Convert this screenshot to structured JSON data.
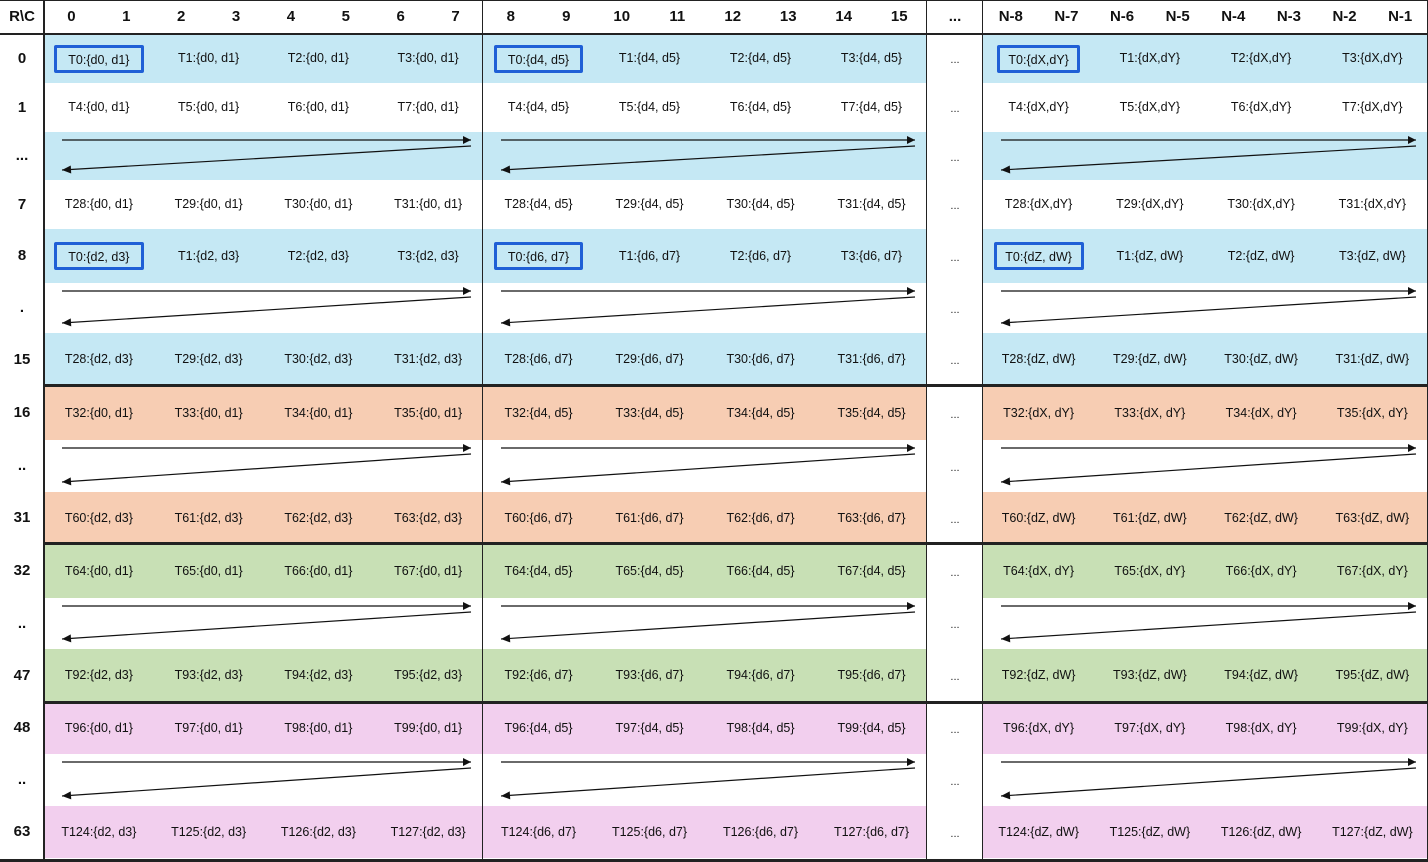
{
  "corner_label": "R\\C",
  "column_headers": {
    "block0": [
      "0",
      "1",
      "2",
      "3",
      "4",
      "5",
      "6",
      "7"
    ],
    "block1": [
      "8",
      "9",
      "10",
      "11",
      "12",
      "13",
      "14",
      "15"
    ],
    "ellipsis": "...",
    "block2": [
      "N-8",
      "N-7",
      "N-6",
      "N-5",
      "N-4",
      "N-3",
      "N-2",
      "N-1"
    ]
  },
  "gap_text": "...",
  "colors": {
    "blue": "#c5e8f4",
    "orange": "#f7cdb3",
    "green": "#c8e0b5",
    "pink": "#f2cfee",
    "highlight_border": "#1f5fd6"
  },
  "groups": [
    {
      "color": "blue",
      "rows": [
        {
          "label": "0",
          "type": "cells",
          "shaded": true,
          "b0": [
            "T0:{d0, d1}",
            "T1:{d0, d1}",
            "T2:{d0, d1}",
            "T3:{d0, d1}"
          ],
          "b1": [
            "T0:{d4, d5}",
            "T1:{d4, d5}",
            "T2:{d4, d5}",
            "T3:{d4, d5}"
          ],
          "b2": [
            "T0:{dX,dY}",
            "T1:{dX,dY}",
            "T2:{dX,dY}",
            "T3:{dX,dY}"
          ],
          "highlight_first": true
        },
        {
          "label": "1",
          "type": "cells",
          "shaded": false,
          "b0": [
            "T4:{d0, d1}",
            "T5:{d0, d1}",
            "T6:{d0, d1}",
            "T7:{d0, d1}"
          ],
          "b1": [
            "T4:{d4, d5}",
            "T5:{d4, d5}",
            "T6:{d4, d5}",
            "T7:{d4, d5}"
          ],
          "b2": [
            "T4:{dX,dY}",
            "T5:{dX,dY}",
            "T6:{dX,dY}",
            "T7:{dX,dY}"
          ]
        },
        {
          "label": "...",
          "type": "arrow",
          "shaded": true
        },
        {
          "label": "7",
          "type": "cells",
          "shaded": false,
          "b0": [
            "T28:{d0, d1}",
            "T29:{d0, d1}",
            "T30:{d0, d1}",
            "T31:{d0, d1}"
          ],
          "b1": [
            "T28:{d4, d5}",
            "T29:{d4, d5}",
            "T30:{d4, d5}",
            "T31:{d4, d5}"
          ],
          "b2": [
            "T28:{dX,dY}",
            "T29:{dX,dY}",
            "T30:{dX,dY}",
            "T31:{dX,dY}"
          ]
        },
        {
          "label": "8",
          "type": "cells",
          "shaded": true,
          "b0": [
            "T0:{d2, d3}",
            "T1:{d2, d3}",
            "T2:{d2, d3}",
            "T3:{d2, d3}"
          ],
          "b1": [
            "T0:{d6, d7}",
            "T1:{d6, d7}",
            "T2:{d6, d7}",
            "T3:{d6, d7}"
          ],
          "b2": [
            "T0:{dZ, dW}",
            "T1:{dZ, dW}",
            "T2:{dZ, dW}",
            "T3:{dZ, dW}"
          ],
          "highlight_first": true
        },
        {
          "label": ".",
          "type": "arrow",
          "shaded": false
        },
        {
          "label": "15",
          "type": "cells",
          "shaded": true,
          "b0": [
            "T28:{d2, d3}",
            "T29:{d2, d3}",
            "T30:{d2, d3}",
            "T31:{d2, d3}"
          ],
          "b1": [
            "T28:{d6, d7}",
            "T29:{d6, d7}",
            "T30:{d6, d7}",
            "T31:{d6, d7}"
          ],
          "b2": [
            "T28:{dZ, dW}",
            "T29:{dZ, dW}",
            "T30:{dZ, dW}",
            "T31:{dZ, dW}"
          ]
        }
      ]
    },
    {
      "color": "orange",
      "rows": [
        {
          "label": "16",
          "type": "cells",
          "shaded": true,
          "b0": [
            "T32:{d0, d1}",
            "T33:{d0, d1}",
            "T34:{d0, d1}",
            "T35:{d0, d1}"
          ],
          "b1": [
            "T32:{d4, d5}",
            "T33:{d4, d5}",
            "T34:{d4, d5}",
            "T35:{d4, d5}"
          ],
          "b2": [
            "T32:{dX, dY}",
            "T33:{dX, dY}",
            "T34:{dX, dY}",
            "T35:{dX, dY}"
          ]
        },
        {
          "label": "..",
          "type": "arrow",
          "shaded": false
        },
        {
          "label": "31",
          "type": "cells",
          "shaded": true,
          "b0": [
            "T60:{d2, d3}",
            "T61:{d2, d3}",
            "T62:{d2, d3}",
            "T63:{d2, d3}"
          ],
          "b1": [
            "T60:{d6, d7}",
            "T61:{d6, d7}",
            "T62:{d6, d7}",
            "T63:{d6, d7}"
          ],
          "b2": [
            "T60:{dZ, dW}",
            "T61:{dZ, dW}",
            "T62:{dZ, dW}",
            "T63:{dZ, dW}"
          ]
        }
      ]
    },
    {
      "color": "green",
      "rows": [
        {
          "label": "32",
          "type": "cells",
          "shaded": true,
          "b0": [
            "T64:{d0, d1}",
            "T65:{d0, d1}",
            "T66:{d0, d1}",
            "T67:{d0, d1}"
          ],
          "b1": [
            "T64:{d4, d5}",
            "T65:{d4, d5}",
            "T66:{d4, d5}",
            "T67:{d4, d5}"
          ],
          "b2": [
            "T64:{dX, dY}",
            "T65:{dX, dY}",
            "T66:{dX, dY}",
            "T67:{dX, dY}"
          ]
        },
        {
          "label": "..",
          "type": "arrow",
          "shaded": false
        },
        {
          "label": "47",
          "type": "cells",
          "shaded": true,
          "b0": [
            "T92:{d2, d3}",
            "T93:{d2, d3}",
            "T94:{d2, d3}",
            "T95:{d2, d3}"
          ],
          "b1": [
            "T92:{d6, d7}",
            "T93:{d6, d7}",
            "T94:{d6, d7}",
            "T95:{d6, d7}"
          ],
          "b2": [
            "T92:{dZ, dW}",
            "T93:{dZ, dW}",
            "T94:{dZ, dW}",
            "T95:{dZ, dW}"
          ]
        }
      ]
    },
    {
      "color": "pink",
      "rows": [
        {
          "label": "48",
          "type": "cells",
          "shaded": true,
          "b0": [
            "T96:{d0, d1}",
            "T97:{d0, d1}",
            "T98:{d0, d1}",
            "T99:{d0, d1}"
          ],
          "b1": [
            "T96:{d4, d5}",
            "T97:{d4, d5}",
            "T98:{d4, d5}",
            "T99:{d4, d5}"
          ],
          "b2": [
            "T96:{dX, dY}",
            "T97:{dX, dY}",
            "T98:{dX, dY}",
            "T99:{dX, dY}"
          ]
        },
        {
          "label": "..",
          "type": "arrow",
          "shaded": false
        },
        {
          "label": "63",
          "type": "cells",
          "shaded": true,
          "b0": [
            "T124:{d2, d3}",
            "T125:{d2, d3}",
            "T126:{d2, d3}",
            "T127:{d2, d3}"
          ],
          "b1": [
            "T124:{d6, d7}",
            "T125:{d6, d7}",
            "T126:{d6, d7}",
            "T127:{d6, d7}"
          ],
          "b2": [
            "T124:{dZ, dW}",
            "T125:{dZ, dW}",
            "T126:{dZ, dW}",
            "T127:{dZ, dW}"
          ]
        }
      ]
    }
  ]
}
